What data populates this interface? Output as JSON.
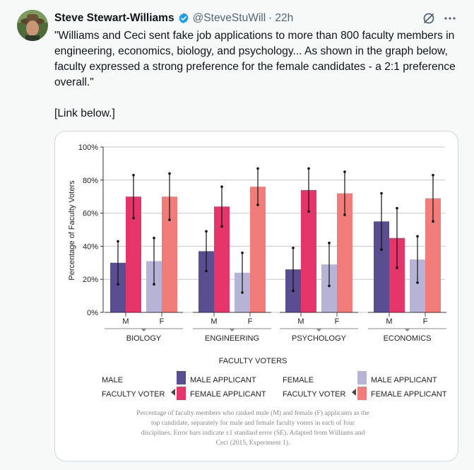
{
  "tweet": {
    "author_name": "Steve Stewart-Williams",
    "handle": "@SteveStuWill",
    "separator": "·",
    "time": "22h",
    "text": "\"Williams and Ceci sent fake job applications to more than 800 faculty members in engineering, economics, biology, and psychology... As shown in the graph below, faculty expressed a strong preference for the female candidates - a 2:1 preference overall.\"",
    "link_note": "[Link below.]"
  },
  "colors": {
    "male_applicant": "#5a4e91",
    "female_applicant_m": "#e5356b",
    "male_applicant_f": "#b7b3d6",
    "female_applicant_f": "#f27c7a"
  },
  "chart_data": {
    "type": "bar",
    "ylabel": "Percentage of Faculty Voters",
    "xlabel": "FACULTY VOTERS",
    "ylim": [
      0,
      100
    ],
    "y_ticks": [
      "0%",
      "20%",
      "40%",
      "60%",
      "80%",
      "100%"
    ],
    "categories": [
      "BIOLOGY",
      "ENGINEERING",
      "PSYCHOLOGY",
      "ECONOMICS"
    ],
    "voter_labels": [
      "M",
      "F"
    ],
    "groups": [
      {
        "discipline": "BIOLOGY",
        "voters": [
          {
            "voter": "M",
            "male": 30,
            "male_err": 13,
            "female": 70,
            "female_err": 13
          },
          {
            "voter": "F",
            "male": 31,
            "male_err": 14,
            "female": 70,
            "female_err": 14
          }
        ]
      },
      {
        "discipline": "ENGINEERING",
        "voters": [
          {
            "voter": "M",
            "male": 37,
            "male_err": 12,
            "female": 64,
            "female_err": 12
          },
          {
            "voter": "F",
            "male": 24,
            "male_err": 12,
            "female": 76,
            "female_err": 11
          }
        ]
      },
      {
        "discipline": "PSYCHOLOGY",
        "voters": [
          {
            "voter": "M",
            "male": 26,
            "male_err": 13,
            "female": 74,
            "female_err": 13
          },
          {
            "voter": "F",
            "male": 29,
            "male_err": 13,
            "female": 72,
            "female_err": 13
          }
        ]
      },
      {
        "discipline": "ECONOMICS",
        "voters": [
          {
            "voter": "M",
            "male": 55,
            "male_err": 17,
            "female": 45,
            "female_err": 18
          },
          {
            "voter": "F",
            "male": 32,
            "male_err": 14,
            "female": 69,
            "female_err": 14
          }
        ]
      }
    ],
    "legend": {
      "male_voter_line1": "MALE",
      "male_voter_line2": "FACULTY VOTER",
      "female_voter_line1": "FEMALE",
      "female_voter_line2": "FACULTY VOTER",
      "male_applicant": "MALE APPLICANT",
      "female_applicant": "FEMALE APPLICANT"
    },
    "caption": [
      "Percentage of faculty members who ranked male (M) and female (F) applicants as the",
      "top candidate, separately for male and female faculty voters in each of four",
      "disciplines. Error bars indicate ±1 standard error (SE). Adapted from Williams and",
      "Ceci (2015, Experiment 1)."
    ]
  }
}
